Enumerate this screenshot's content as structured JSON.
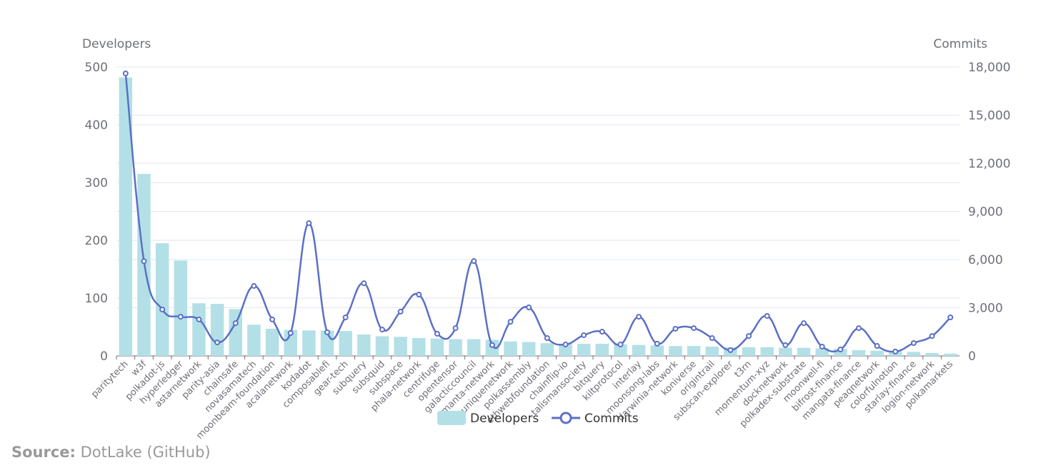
{
  "chart_data": {
    "type": "bar-line",
    "y_label": "Developers",
    "y2_label": "Commits",
    "categories": [
      "paritytech",
      "w3f",
      "polkadot-js",
      "hyperledger",
      "astarnetwork",
      "parity-asia",
      "chainsafe",
      "novasamatech",
      "moonbeam-foundation",
      "acalanetwork",
      "kodadot",
      "composablefi",
      "gear-tech",
      "subquery",
      "subsquid",
      "subspace",
      "phala-network",
      "centrifuge",
      "opentensor",
      "galacticcouncil",
      "manta-network",
      "uniquenetwork",
      "polkassembly",
      "ethwebfoundation",
      "chainflip-io",
      "talismansociety",
      "bitquery",
      "kiltprotocol",
      "interlay",
      "moonsong-labs",
      "darwinia-network",
      "koniverse",
      "origintrail",
      "subscan-explorer",
      "t3rn",
      "momentum-xyz",
      "docknetwork",
      "polkadex-substrate",
      "moonwell-fi",
      "bifrost-finance",
      "mangata-finance",
      "peaqnetwork",
      "colorfulnotion",
      "starlay-finance",
      "logion-network",
      "polkamarkets"
    ],
    "series": [
      {
        "name": "Developers",
        "type": "bar",
        "color": "#b3e0e6",
        "values": [
          482,
          315,
          195,
          165,
          91,
          90,
          81,
          54,
          47,
          45,
          44,
          44,
          43,
          37,
          34,
          33,
          31,
          30,
          29,
          29,
          28,
          25,
          24,
          22,
          21,
          21,
          21,
          20,
          19,
          18,
          17,
          17,
          16,
          15,
          15,
          15,
          14,
          14,
          13,
          12,
          10,
          9,
          8,
          7,
          5,
          4
        ]
      },
      {
        "name": "Commits",
        "type": "line",
        "axis": "y2",
        "color": "#5b70c4",
        "values": [
          17600,
          5900,
          2890,
          2440,
          2270,
          840,
          2040,
          4360,
          2270,
          1420,
          8270,
          1470,
          2400,
          4530,
          1640,
          2760,
          3820,
          1380,
          1730,
          5910,
          670,
          2130,
          3020,
          1110,
          710,
          1290,
          1510,
          710,
          2440,
          760,
          1690,
          1730,
          1110,
          360,
          1240,
          2490,
          670,
          2040,
          580,
          400,
          1730,
          620,
          270,
          800,
          1240,
          2400
        ]
      }
    ],
    "ylim": [
      0,
      500
    ],
    "yticks": [
      0,
      100,
      200,
      300,
      400,
      500
    ],
    "y2lim": [
      0,
      18000
    ],
    "y2ticks": [
      0,
      {
        "value": 3000,
        "label": "3,000"
      },
      {
        "value": 6000,
        "label": "6,000"
      },
      {
        "value": 9000,
        "label": "9,000"
      },
      {
        "value": 12000,
        "label": "12,000"
      },
      {
        "value": 15000,
        "label": "15,000"
      },
      {
        "value": 18000,
        "label": "18,000"
      }
    ],
    "grid": true
  },
  "source": {
    "label": "Source:",
    "text": "DotLake (GitHub)"
  }
}
